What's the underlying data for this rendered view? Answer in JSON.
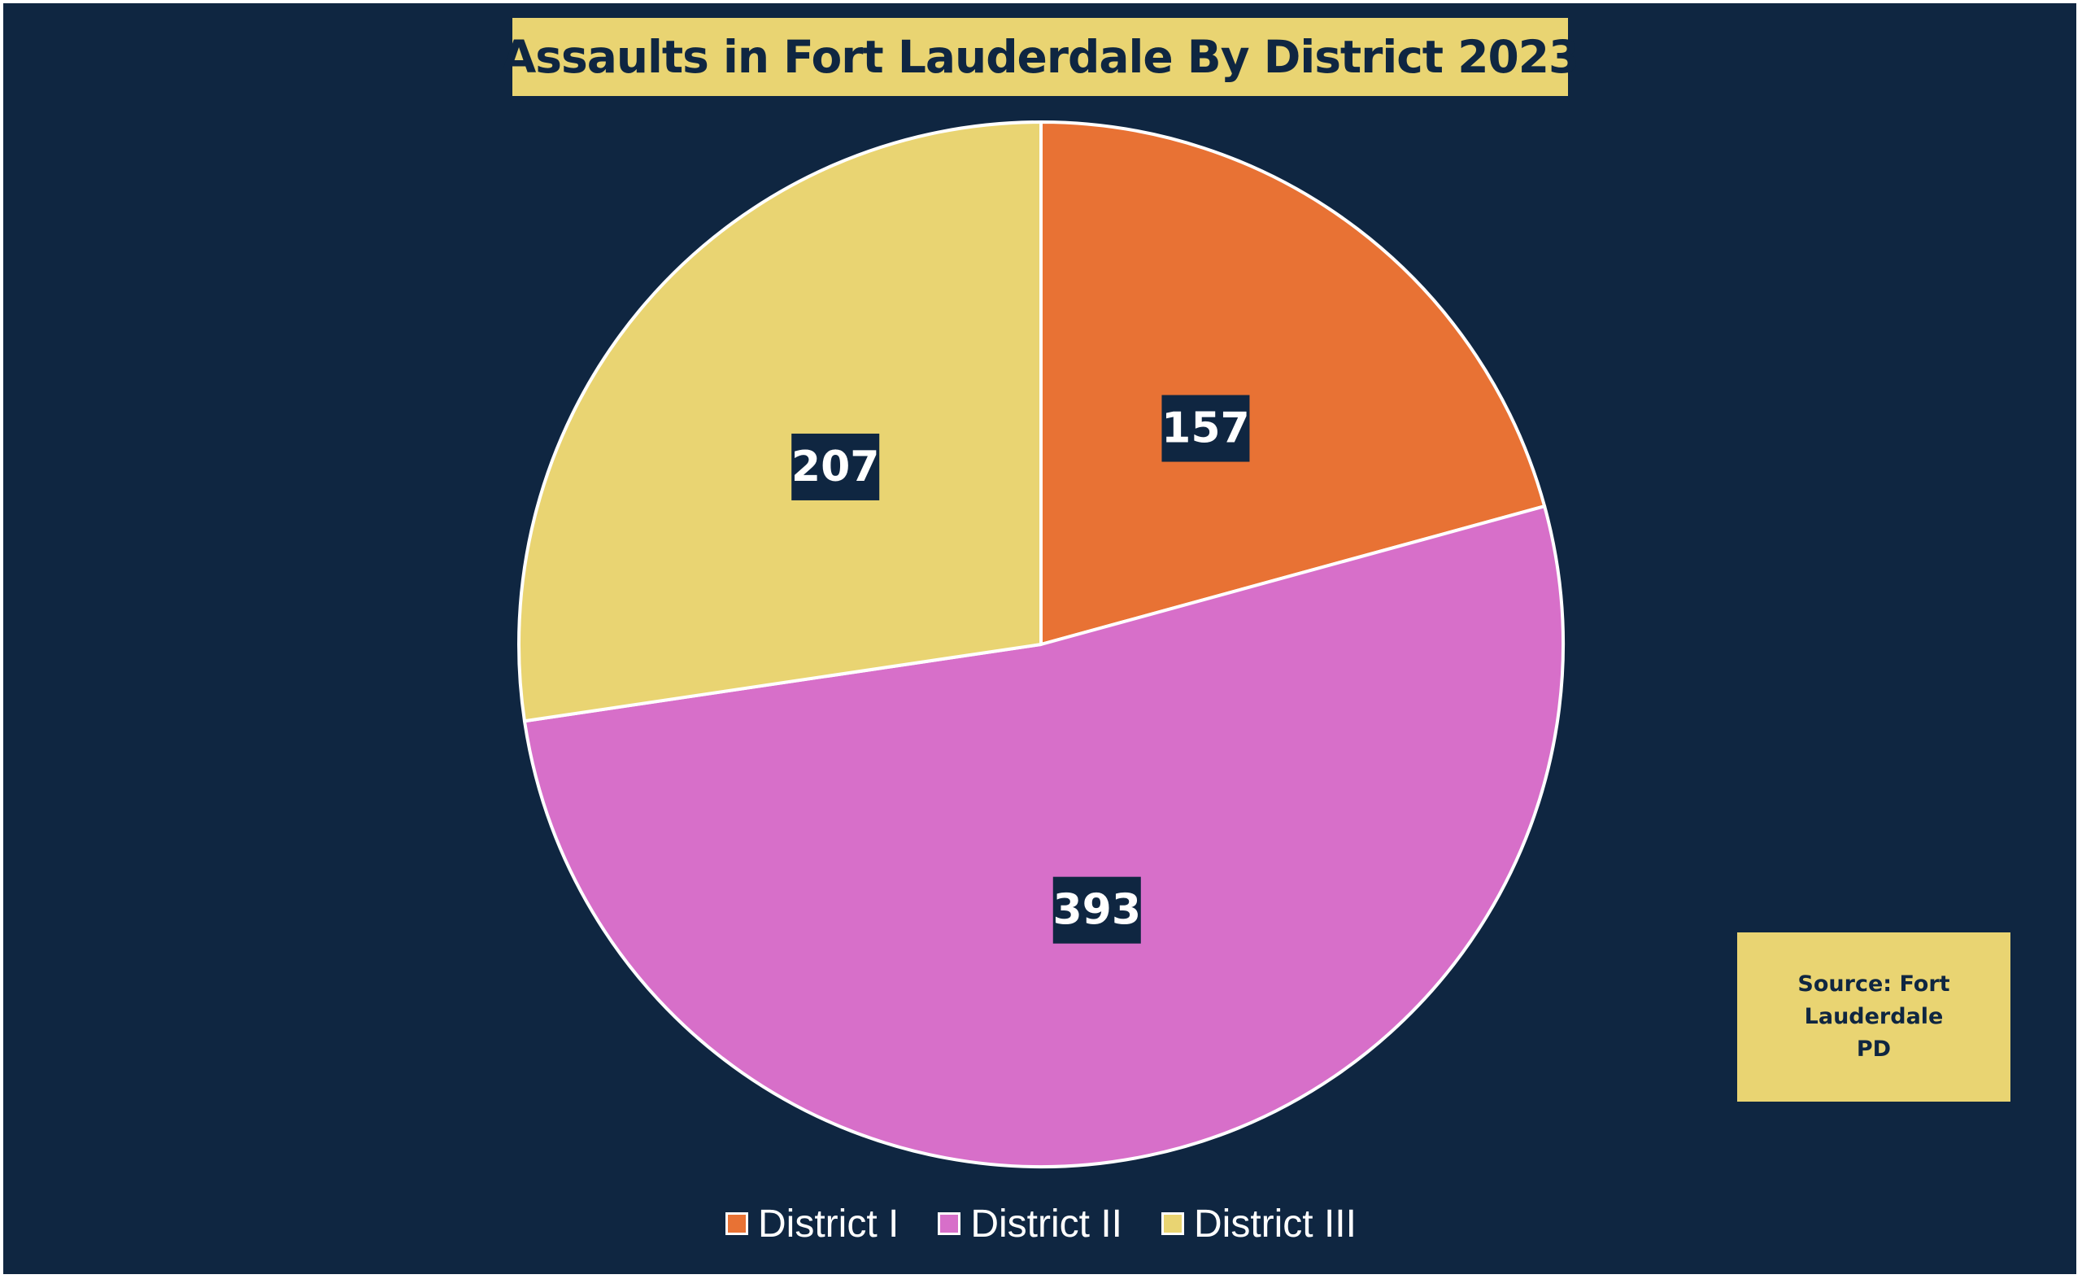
{
  "chart_data": {
    "type": "pie",
    "title": "Assaults in Fort Lauderdale By District 2023",
    "categories": [
      "District I",
      "District II",
      "District III"
    ],
    "values": [
      157,
      393,
      207
    ],
    "colors": [
      "#e87234",
      "#d76fc9",
      "#e9d472"
    ],
    "data_labels": [
      "157",
      "393",
      "207"
    ],
    "start_angle": "12 o'clock",
    "direction": "clockwise",
    "legend_position": "bottom",
    "background_color": "#0f2641",
    "slice_border_color": "#ffffff"
  },
  "annotation": {
    "source": "Source: Fort Lauderdale PD"
  }
}
